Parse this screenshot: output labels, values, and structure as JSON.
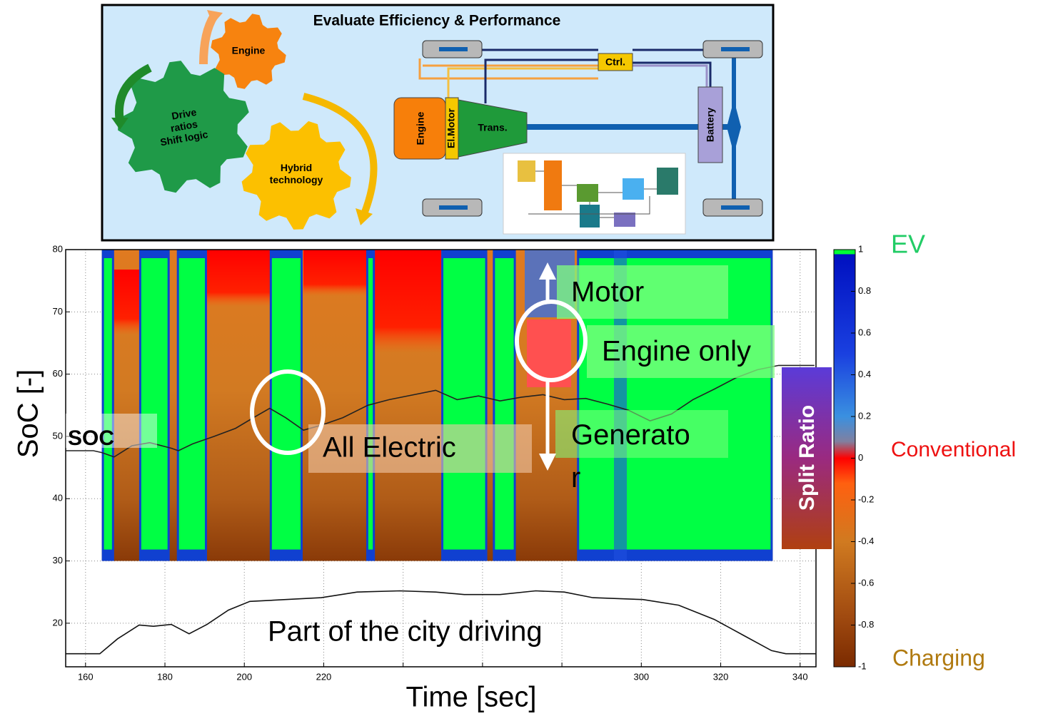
{
  "diagram": {
    "title": "Evaluate Efficiency & Performance",
    "gears": [
      {
        "lines": [
          "Engine"
        ]
      },
      {
        "lines": [
          "Drive",
          "ratios",
          "Shift logic"
        ]
      },
      {
        "lines": [
          "Hybrid",
          "technology"
        ]
      }
    ],
    "components": {
      "ctrl": "Ctrl.",
      "engine": "Engine",
      "motor": "El.Motor",
      "trans": "Trans.",
      "battery": "Battery"
    }
  },
  "chart_data": {
    "type": "line",
    "xlabel": "Time [sec]",
    "ylabel": "SoC [-]",
    "xlim": [
      155,
      344
    ],
    "ylim": [
      13,
      80
    ],
    "xticks": [
      160,
      180,
      200,
      220,
      {
        "value": 240,
        "label": null
      },
      {
        "value": 260,
        "label": null
      },
      {
        "value": 280,
        "label": null
      },
      300,
      320,
      340
    ],
    "yticks": [
      20,
      30,
      40,
      50,
      60,
      70,
      80
    ],
    "grid": true,
    "series": [
      {
        "name": "SOC",
        "color": "#222222",
        "x": [
          155,
          162,
          164.1,
          167.2,
          171.7,
          176.2,
          181.6,
          183.4,
          187,
          192.4,
          197.8,
          202.3,
          206.4,
          210.4,
          214.9,
          219.4,
          224.8,
          231.1,
          236.5,
          242.8,
          248.2,
          253.6,
          259,
          264.4,
          269.8,
          275.2,
          280.6,
          286,
          291.4,
          296.8,
          302.2,
          307.6,
          313,
          318.4,
          323.8,
          329.2,
          334.6,
          343.6
        ],
        "values": [
          47.7,
          47.7,
          47.4,
          46.7,
          48.5,
          49,
          48.1,
          47.7,
          48.8,
          50,
          51.3,
          53,
          54.5,
          53,
          51,
          51.8,
          53,
          55,
          55.9,
          56.7,
          57.4,
          55.9,
          56.5,
          55.7,
          56.3,
          56.7,
          55.9,
          56.1,
          55.2,
          54.2,
          52.5,
          53.6,
          55.9,
          57.6,
          59.4,
          60.7,
          61.4,
          61.4
        ]
      },
      {
        "color": "#111111",
        "x": [
          155,
          163.6,
          168.1,
          173.5,
          177.1,
          181.6,
          186.1,
          190.6,
          196,
          201.4,
          210.4,
          219.4,
          228.4,
          239.2,
          248.2,
          255.4,
          264.4,
          273.4,
          280.6,
          287.8,
          300.4,
          309.4,
          318.4,
          325.6,
          332.8,
          336.4,
          344
        ],
        "values": [
          15.1,
          15.1,
          17.5,
          19.7,
          19.5,
          19.8,
          18.3,
          19.8,
          22.1,
          23.5,
          23.8,
          24.1,
          25,
          25.2,
          25,
          24.6,
          24.6,
          25.2,
          25,
          24.1,
          23.8,
          22.9,
          20.6,
          18.1,
          15.6,
          15.1,
          15.1
        ]
      }
    ],
    "heatmap": {
      "xlim": [
        164.1,
        333.1
      ],
      "ylim": [
        30,
        80
      ],
      "ev_intervals": [
        [
          164.1,
          167.2
        ],
        [
          173.5,
          181.2
        ],
        [
          183,
          190.6
        ],
        [
          206.4,
          214.7
        ],
        [
          230.7,
          232.9
        ],
        [
          249.6,
          261.2
        ],
        [
          262.6,
          268.4
        ],
        [
          283.8,
          333.1
        ]
      ]
    },
    "colorbar": {
      "label": "Split Ratio",
      "lim": [
        -1,
        1
      ],
      "ticks": [
        1,
        0.8,
        0.6,
        0.4,
        0.2,
        0,
        -0.2,
        -0.4,
        -0.6,
        -0.8,
        -1
      ],
      "labels": {
        "top": "EV",
        "middle": "Conventional",
        "bottom": "Charging"
      }
    },
    "annotations": {
      "motor": "Motor",
      "engine_only": "Engine only",
      "generator": "Generator",
      "all_electric": "All Electric",
      "city": "Part of the city driving"
    }
  }
}
